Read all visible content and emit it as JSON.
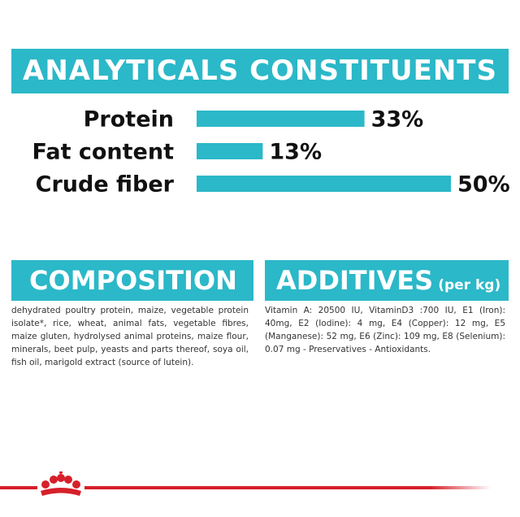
{
  "chart_data": {
    "type": "bar",
    "orientation": "horizontal",
    "title": "ANALYTICALS CONSTITUENTS",
    "categories": [
      "Protein",
      "Fat content",
      "Crude fiber"
    ],
    "values": [
      33,
      13,
      50
    ],
    "value_labels": [
      "33%",
      "13%",
      "50%"
    ],
    "color": "#2bb8c8"
  },
  "composition": {
    "title": "COMPOSITION",
    "text": "dehydrated poultry protein, maize, vegetable protein isolate*, rice, wheat, animal fats, vegetable fibres, maize gluten, hydrolysed animal proteins, maize flour, minerals, beet pulp, yeasts and parts thereof, soya oil, fish oil, marigold extract (source of lutein)."
  },
  "additives": {
    "title": "ADDITIVES",
    "unit": "(per kg)",
    "text": "Vitamin A: 20500 IU, VitaminD3 :700 IU, E1 (Iron): 40mg, E2 (Iodine): 4 mg, E4 (Copper): 12 mg, E5 (Manganese): 52 mg, E6 (Zinc): 109 mg, E8 (Selenium): 0.07 mg - Preservatives - Antioxidants."
  }
}
